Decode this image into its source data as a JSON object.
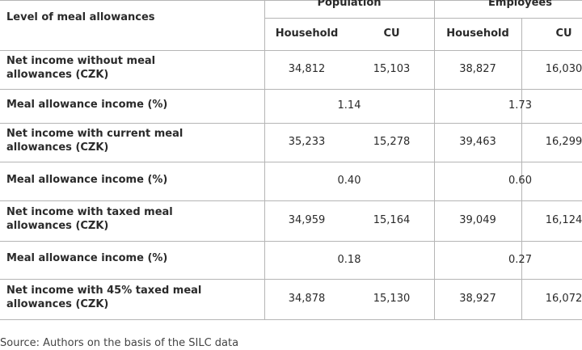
{
  "table": {
    "header": {
      "row_label": "Level of meal allowances",
      "groups": [
        "Population",
        "Employees"
      ],
      "subheaders": [
        "Household",
        "CU",
        "Household",
        "CU"
      ]
    },
    "rows": [
      {
        "label": [
          "Net income without meal",
          "allowances (CZK)"
        ],
        "values": [
          "34,812",
          "15,103",
          "38,827",
          "16,030"
        ]
      },
      {
        "label": [
          "Meal allowance income (%)"
        ],
        "values": [
          "1.14",
          "1.73"
        ]
      },
      {
        "label": [
          "Net income with current meal",
          "allowances (CZK)"
        ],
        "values": [
          "35,233",
          "15,278",
          "39,463",
          "16,299"
        ]
      },
      {
        "label": [
          "Meal allowance income (%)"
        ],
        "values": [
          "0.40",
          "0.60"
        ]
      },
      {
        "label": [
          "Net income with taxed meal",
          "allowances (CZK)"
        ],
        "values": [
          "34,959",
          "15,164",
          "39,049",
          "16,124"
        ]
      },
      {
        "label": [
          "Meal allowance income (%)"
        ],
        "values": [
          "0.18",
          "0.27"
        ]
      },
      {
        "label": [
          "Net income with 45% taxed meal",
          "allowances (CZK)"
        ],
        "values": [
          "34,878",
          "15,130",
          "38,927",
          "16,072"
        ]
      }
    ]
  },
  "source": "Source: Authors on the basis of the SILC data"
}
